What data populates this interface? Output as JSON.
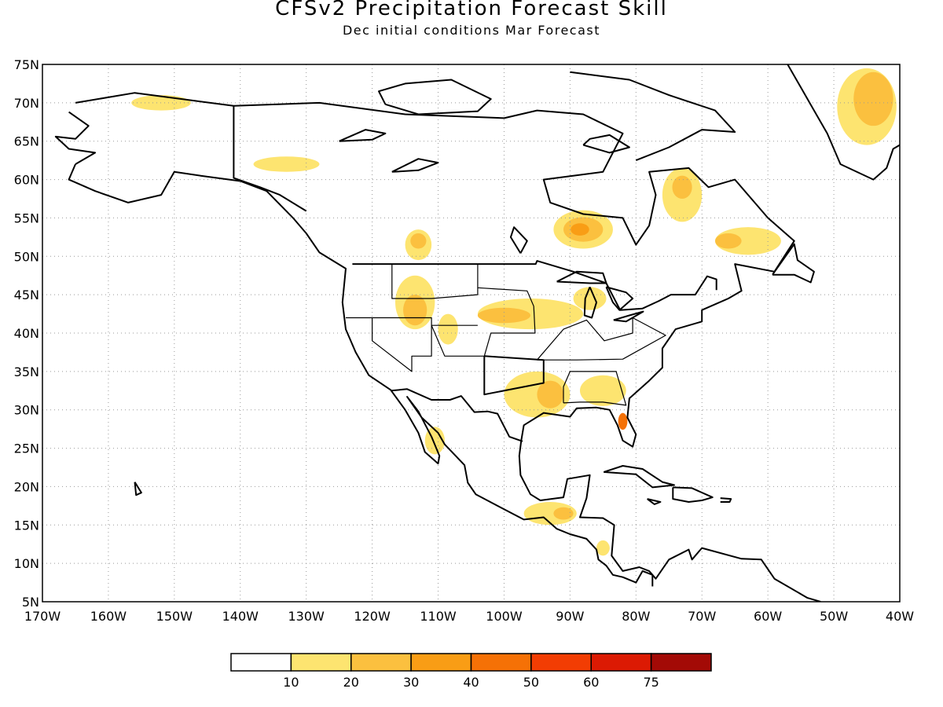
{
  "title": "CFSv2 Precipitation Forecast Skill",
  "subtitle": "Dec initial conditions  Mar Forecast",
  "map": {
    "lon_range": [
      -170,
      -40
    ],
    "lat_range": [
      5,
      75
    ],
    "lat_ticks": [
      "75N",
      "70N",
      "65N",
      "60N",
      "55N",
      "50N",
      "45N",
      "40N",
      "35N",
      "30N",
      "25N",
      "20N",
      "15N",
      "10N",
      "5N"
    ],
    "lon_ticks": [
      "170W",
      "160W",
      "150W",
      "140W",
      "130W",
      "120W",
      "110W",
      "100W",
      "90W",
      "80W",
      "70W",
      "60W",
      "50W",
      "40W"
    ],
    "grid": "dotted",
    "skill_regions": [
      {
        "name": "northern-alaska",
        "level": 1,
        "lon": -152,
        "lat": 70.0,
        "rx": 4.5,
        "ry": 1.0
      },
      {
        "name": "yukon-coast",
        "level": 1,
        "lon": -133,
        "lat": 62.0,
        "rx": 5.0,
        "ry": 1.0
      },
      {
        "name": "bc-interior",
        "level": 1,
        "lon": -113,
        "lat": 51.5,
        "rx": 2.0,
        "ry": 2.0
      },
      {
        "name": "bc-interior-core",
        "level": 2,
        "lon": -113,
        "lat": 52.0,
        "rx": 1.2,
        "ry": 1.0
      },
      {
        "name": "hudson-bay-south",
        "level": 1,
        "lon": -88,
        "lat": 53.5,
        "rx": 4.5,
        "ry": 2.5
      },
      {
        "name": "hudson-bay-core",
        "level": 2,
        "lon": -88,
        "lat": 53.5,
        "rx": 3.0,
        "ry": 1.6
      },
      {
        "name": "hudson-bay-center",
        "level": 3,
        "lon": -88.5,
        "lat": 53.5,
        "rx": 1.4,
        "ry": 0.8
      },
      {
        "name": "quebec-north",
        "level": 1,
        "lon": -73,
        "lat": 58.0,
        "rx": 3.0,
        "ry": 3.5
      },
      {
        "name": "quebec-north-core",
        "level": 2,
        "lon": -73,
        "lat": 59.0,
        "rx": 1.5,
        "ry": 1.5
      },
      {
        "name": "labrador",
        "level": 1,
        "lon": -63,
        "lat": 52.0,
        "rx": 5.0,
        "ry": 1.8
      },
      {
        "name": "labrador-core",
        "level": 2,
        "lon": -66,
        "lat": 52.0,
        "rx": 2.0,
        "ry": 1.0
      },
      {
        "name": "greenland-east",
        "level": 1,
        "lon": -45,
        "lat": 69.5,
        "rx": 4.5,
        "ry": 5.0
      },
      {
        "name": "greenland-core",
        "level": 2,
        "lon": -44,
        "lat": 70.5,
        "rx": 3.0,
        "ry": 3.5
      },
      {
        "name": "idaho-montana",
        "level": 1,
        "lon": -113.5,
        "lat": 44.0,
        "rx": 3.0,
        "ry": 3.5
      },
      {
        "name": "idaho-montana-core",
        "level": 2,
        "lon": -113.5,
        "lat": 43.0,
        "rx": 1.8,
        "ry": 2.0
      },
      {
        "name": "colorado",
        "level": 1,
        "lon": -108.5,
        "lat": 40.5,
        "rx": 1.5,
        "ry": 2.0
      },
      {
        "name": "central-plains",
        "level": 1,
        "lon": -96,
        "lat": 42.5,
        "rx": 8.0,
        "ry": 2.0
      },
      {
        "name": "central-plains-core",
        "level": 2,
        "lon": -100,
        "lat": 42.3,
        "rx": 4.0,
        "ry": 1.0
      },
      {
        "name": "great-lakes",
        "level": 1,
        "lon": -87,
        "lat": 44.5,
        "rx": 2.5,
        "ry": 1.5
      },
      {
        "name": "texas-louisiana",
        "level": 1,
        "lon": -95,
        "lat": 32.0,
        "rx": 5.0,
        "ry": 3.0
      },
      {
        "name": "louisiana-core",
        "level": 2,
        "lon": -93,
        "lat": 32.0,
        "rx": 2.0,
        "ry": 1.8
      },
      {
        "name": "gulf-coast",
        "level": 1,
        "lon": -85,
        "lat": 32.5,
        "rx": 3.5,
        "ry": 2.0
      },
      {
        "name": "florida",
        "level": 4,
        "lon": -82,
        "lat": 28.5,
        "rx": 0.7,
        "ry": 1.1
      },
      {
        "name": "baja-sonora",
        "level": 1,
        "lon": -110.5,
        "lat": 26.0,
        "rx": 1.5,
        "ry": 1.8
      },
      {
        "name": "southern-mexico",
        "level": 1,
        "lon": -93,
        "lat": 16.5,
        "rx": 4.0,
        "ry": 1.5
      },
      {
        "name": "southern-mexico-core",
        "level": 2,
        "lon": -91,
        "lat": 16.5,
        "rx": 1.5,
        "ry": 0.8
      },
      {
        "name": "central-america",
        "level": 1,
        "lon": -85,
        "lat": 12.0,
        "rx": 1.0,
        "ry": 1.0
      }
    ]
  },
  "legend": {
    "labels": [
      "10",
      "20",
      "30",
      "40",
      "50",
      "60",
      "75"
    ],
    "colors": [
      "#ffffff",
      "#fde470",
      "#fbc03f",
      "#f99d15",
      "#f57106",
      "#f23d03",
      "#dc1a03",
      "#a30a06"
    ]
  }
}
